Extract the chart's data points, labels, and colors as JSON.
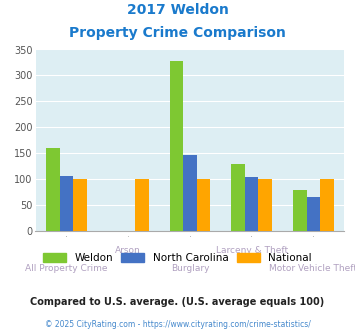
{
  "title_line1": "2017 Weldon",
  "title_line2": "Property Crime Comparison",
  "categories": [
    "All Property Crime",
    "Arson",
    "Burglary",
    "Larceny & Theft",
    "Motor Vehicle Theft"
  ],
  "weldon": [
    160,
    0,
    328,
    130,
    80
  ],
  "north_carolina": [
    107,
    0,
    147,
    105,
    65
  ],
  "national": [
    100,
    100,
    100,
    100,
    100
  ],
  "weldon_color": "#7ec832",
  "north_carolina_color": "#4472c4",
  "national_color": "#ffa500",
  "bg_color": "#ddeef3",
  "ylim": [
    0,
    350
  ],
  "yticks": [
    0,
    50,
    100,
    150,
    200,
    250,
    300,
    350
  ],
  "legend_labels": [
    "Weldon",
    "North Carolina",
    "National"
  ],
  "footnote1": "Compared to U.S. average. (U.S. average equals 100)",
  "footnote2": "© 2025 CityRating.com - https://www.cityrating.com/crime-statistics/",
  "title_color": "#1a7acc",
  "xlabel_color_upper": "#b0a0c0",
  "xlabel_color_lower": "#b0a0c0",
  "footnote1_color": "#222222",
  "footnote2_color": "#4488cc"
}
